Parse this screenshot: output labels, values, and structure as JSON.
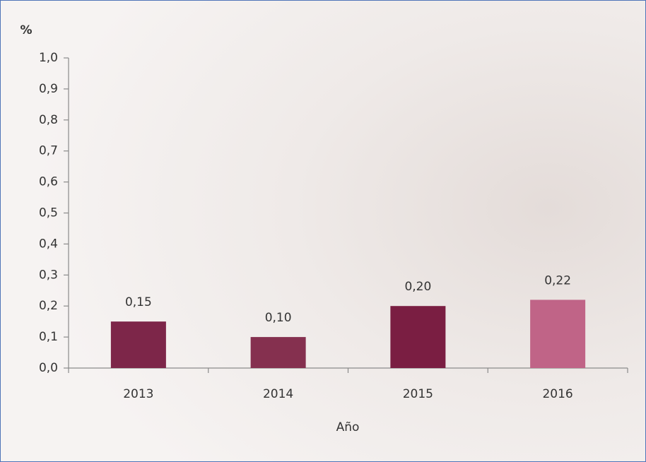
{
  "chart_data": {
    "type": "bar",
    "y_label": "%",
    "x_label": "Año",
    "categories": [
      "2013",
      "2014",
      "2015",
      "2016"
    ],
    "values": [
      0.15,
      0.1,
      0.2,
      0.22
    ],
    "value_labels": [
      "0,15",
      "0,10",
      "0,20",
      "0,22"
    ],
    "colors": [
      "#7d2649",
      "#85304f",
      "#7a1e42",
      "#c06487"
    ],
    "ylim": [
      0,
      1.0
    ],
    "yticks": [
      {
        "value": 0,
        "label": "0,0"
      },
      {
        "value": 0.1,
        "label": "0,1"
      },
      {
        "value": 0.2,
        "label": "0,2"
      },
      {
        "value": 0.3,
        "label": "0,3"
      },
      {
        "value": 0.4,
        "label": "0,4"
      },
      {
        "value": 0.5,
        "label": "0,5"
      },
      {
        "value": 0.6,
        "label": "0,6"
      },
      {
        "value": 0.7,
        "label": "0,7"
      },
      {
        "value": 0.8,
        "label": "0,8"
      },
      {
        "value": 0.9,
        "label": "0,9"
      },
      {
        "value": 1.0,
        "label": "1,0"
      }
    ],
    "grid": false
  }
}
